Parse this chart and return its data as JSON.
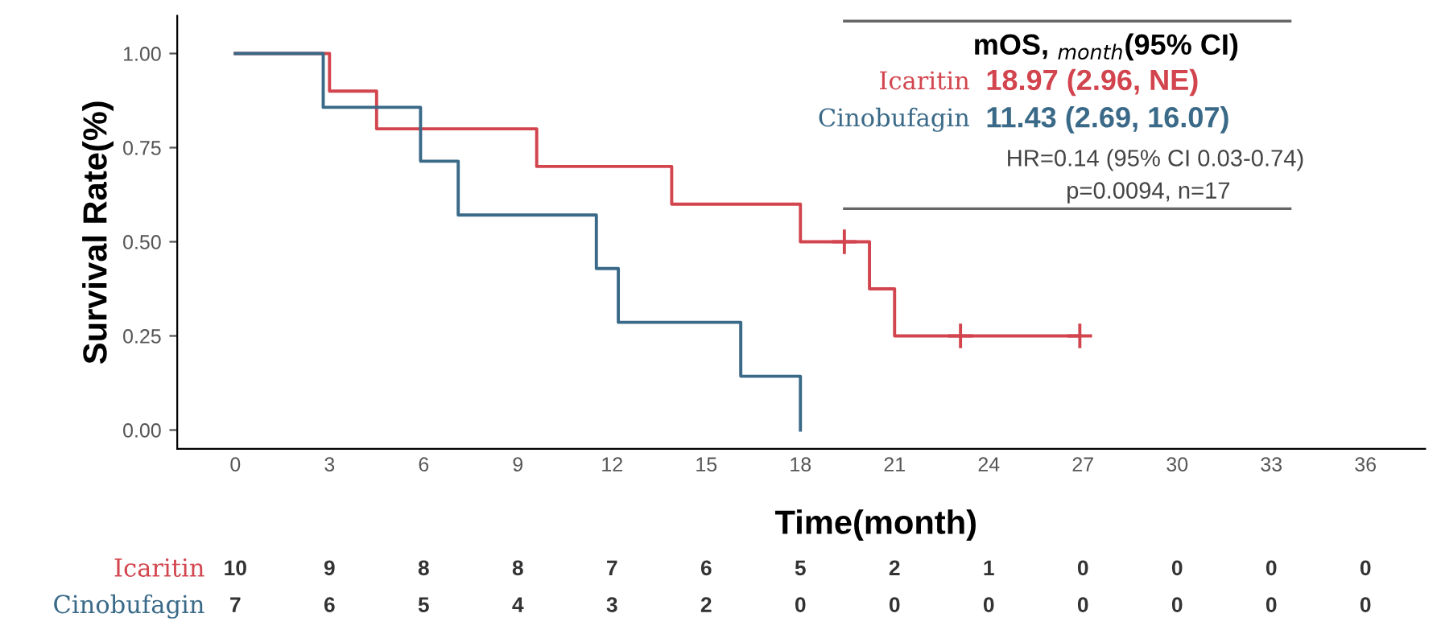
{
  "chart_data": {
    "type": "step",
    "xlabel": "Time(month)",
    "ylabel": "Survival Rate(%)",
    "xlim": [
      -1.85,
      37.9
    ],
    "ylim": [
      -0.05,
      1.1
    ],
    "xticks": [
      0,
      3,
      6,
      9,
      12,
      15,
      18,
      21,
      24,
      27,
      30,
      33,
      36
    ],
    "yticks": [
      {
        "value": 0,
        "label": "0.00"
      },
      {
        "value": 0.25,
        "label": "0.25"
      },
      {
        "value": 0.5,
        "label": "0.50"
      },
      {
        "value": 0.75,
        "label": "0.75"
      },
      {
        "value": 1,
        "label": "1.00"
      }
    ],
    "grid": false,
    "legend": false,
    "line_style": "solid",
    "marker": "none",
    "series": [
      {
        "name": "Icaritin",
        "color": "#d2454e",
        "x": [
          0,
          3.0,
          4.5,
          9.6,
          13.9,
          18.0,
          20.2,
          21.0,
          26.9
        ],
        "values": [
          1.0,
          0.9,
          0.8,
          0.7,
          0.6,
          0.5,
          0.375,
          0.25,
          0.25
        ]
      },
      {
        "name": "Cinobufagin",
        "color": "#3a6a88",
        "x": [
          0,
          2.8,
          5.9,
          7.1,
          11.5,
          12.2,
          16.1,
          18.0
        ],
        "values": [
          1.0,
          0.857,
          0.714,
          0.571,
          0.429,
          0.286,
          0.143,
          0.0
        ]
      },
      {
        "type": "scatter",
        "color": "#d2454e",
        "x": [
          19.4,
          23.1,
          26.9
        ],
        "values": [
          0.5,
          0.25,
          0.25
        ],
        "marker": "cross"
      }
    ],
    "annotations": [
      "mOS, $_{month}$(95% CI)",
      "18.97 (2.96, NE)",
      "11.43 (2.69, 16.07)",
      "HR=0.14 (95% CI 0.03-0.74)",
      "p=0.0094, n=17",
      "10",
      "9",
      "8",
      "8",
      "7",
      "6",
      "5",
      "2",
      "1",
      "0",
      "0",
      "0",
      "0",
      "7",
      "6",
      "5",
      "4",
      "3",
      "2",
      "0",
      "0",
      "0",
      "0",
      "0",
      "0",
      "0"
    ]
  }
}
